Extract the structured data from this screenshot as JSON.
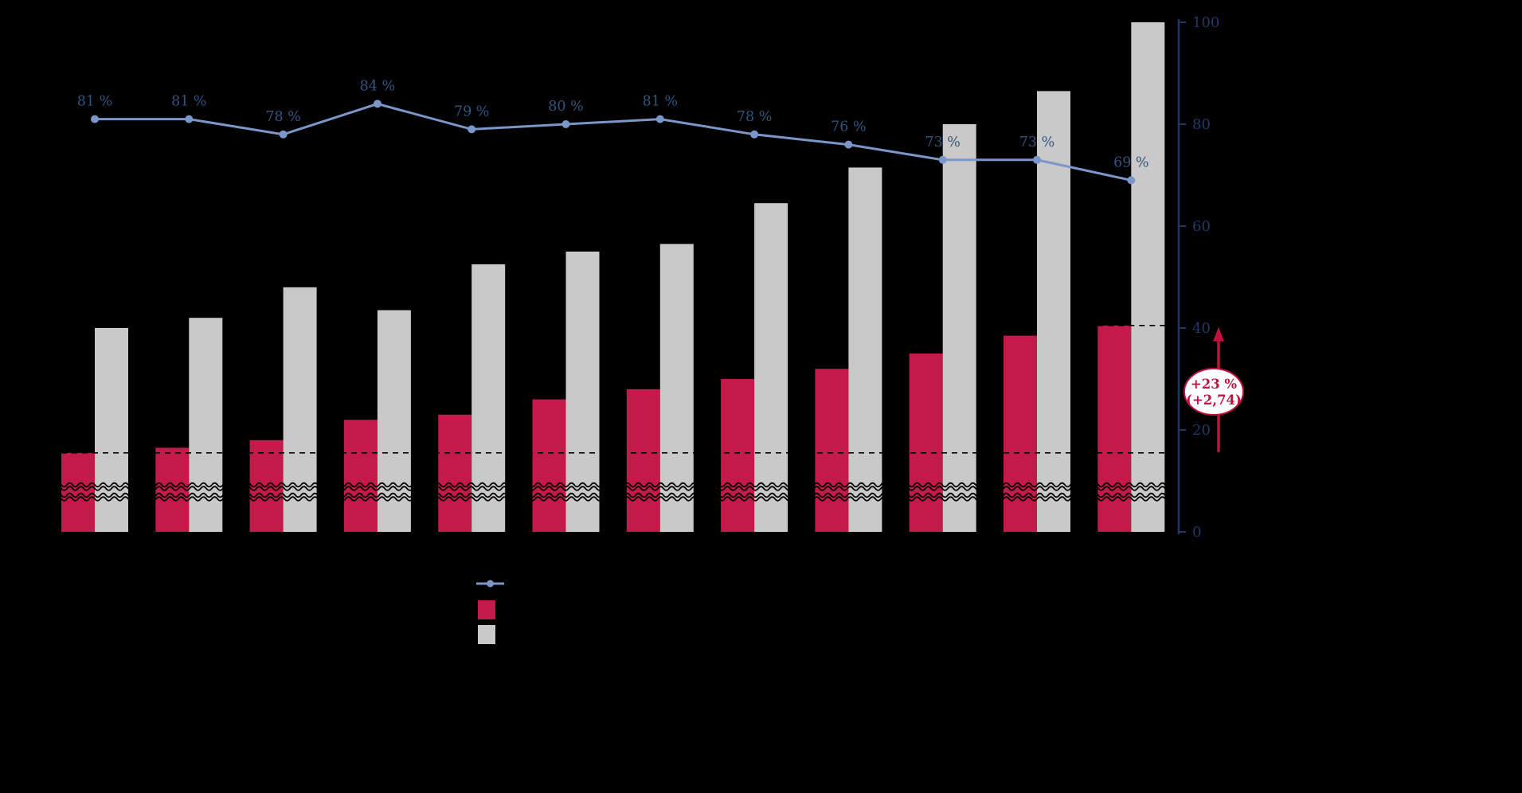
{
  "chart_data": {
    "type": "bar",
    "subtype": "combo-bar-line-dual",
    "categories": [
      "",
      "",
      "",
      "",
      "",
      "",
      "",
      "",
      "",
      "",
      "",
      ""
    ],
    "series": [
      {
        "name": "share-line",
        "type": "line",
        "color": "#7b97c9",
        "values": [
          81,
          81,
          78,
          84,
          79,
          80,
          81,
          78,
          76,
          73,
          73,
          69
        ],
        "point_labels": [
          "81 %",
          "81 %",
          "78 %",
          "84 %",
          "79 %",
          "80 %",
          "81 %",
          "78 %",
          "76 %",
          "73 %",
          "73 %",
          "69 %"
        ]
      },
      {
        "name": "red-bar-series",
        "type": "bar",
        "color": "#c41a4a",
        "values": [
          15.5,
          16.5,
          18,
          22,
          23,
          26,
          28,
          30,
          32,
          35,
          38.5,
          40.5
        ]
      },
      {
        "name": "gray-bar-series",
        "type": "bar",
        "color": "#c9c9c9",
        "values": [
          40,
          42,
          48,
          43.5,
          52.5,
          55,
          56.5,
          64.5,
          71.5,
          80,
          86.5,
          100
        ]
      }
    ],
    "title": "",
    "xlabel": "",
    "ylabel": "",
    "ylim": [
      0,
      100
    ],
    "yticks": [
      0,
      20,
      40,
      60,
      80,
      100
    ],
    "ytick_labels": [
      "0",
      "20",
      "40",
      "60",
      "80",
      "100"
    ],
    "y_axis_side": "right",
    "grid": false,
    "axis_break": true,
    "reference_lines": [
      {
        "value": 15.5,
        "style": "dashed",
        "extent": "full"
      },
      {
        "value": 40.5,
        "style": "dashed",
        "extent": "right"
      }
    ],
    "annotation": {
      "lines": [
        "+23 %",
        "(+2,74)"
      ],
      "color": "#c2113e",
      "arrow": {
        "from_value": 15.5,
        "to_value": 40.5,
        "direction": "up"
      }
    },
    "legend": {
      "position": "bottom-center",
      "entries": [
        {
          "marker": "line-dot",
          "color": "#7b97c9",
          "label": ""
        },
        {
          "marker": "square",
          "color": "#c41a4a",
          "label": ""
        },
        {
          "marker": "square",
          "color": "#c9c9c9",
          "label": ""
        }
      ]
    }
  },
  "colors": {
    "background": "#000000",
    "axis": "#1f3864",
    "percent_label": "#33547e",
    "line": "#7b97c9",
    "red_bar": "#c41a4a",
    "gray_bar": "#c9c9c9",
    "annotation_red": "#c2113e",
    "reference_line": "#000000"
  }
}
